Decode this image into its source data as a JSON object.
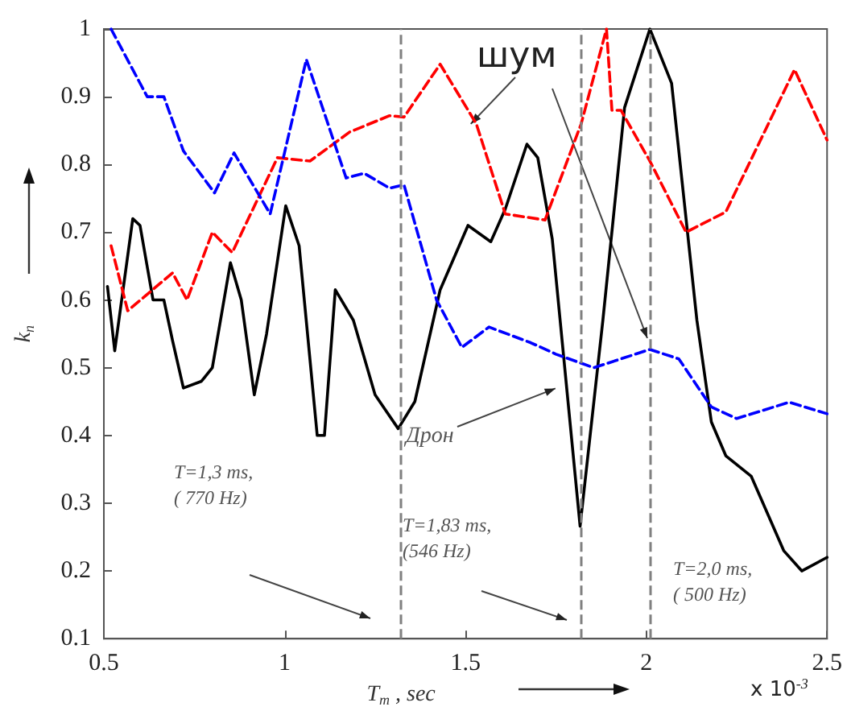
{
  "chart_data": {
    "type": "line",
    "xlabel": "T$_{m}$ , sec",
    "ylabel": "k$_{n}$",
    "xlim": [
      0.5,
      2.5
    ],
    "xticks": [
      0.5,
      1,
      1.5,
      2,
      2.5
    ],
    "ylim": [
      0.1,
      1
    ],
    "yticks": [
      0.1,
      0.2,
      0.3,
      0.4,
      0.5,
      0.6,
      0.7,
      0.8,
      0.9,
      1
    ],
    "grid": false,
    "marker": "none",
    "series": [
      {
        "color": "#000000",
        "line_style": "solid",
        "x": [
          0.51,
          0.53,
          0.58,
          0.6,
          0.636,
          0.666,
          0.69,
          0.72,
          0.77,
          0.8,
          0.85,
          0.88,
          0.916,
          0.95,
          1.003,
          1.04,
          1.09,
          1.11,
          1.14,
          1.19,
          1.25,
          1.314,
          1.36,
          1.43,
          1.507,
          1.57,
          1.61,
          1.67,
          1.7,
          1.74,
          1.817,
          1.88,
          1.94,
          2.01,
          2.07,
          2.14,
          2.18,
          2.22,
          2.29,
          2.38,
          2.43,
          2.5
        ],
        "values": [
          0.62,
          0.525,
          0.72,
          0.71,
          0.6,
          0.6,
          0.54,
          0.47,
          0.48,
          0.5,
          0.655,
          0.6,
          0.46,
          0.55,
          0.739,
          0.68,
          0.4,
          0.4,
          0.615,
          0.57,
          0.46,
          0.41,
          0.45,
          0.615,
          0.71,
          0.686,
          0.734,
          0.83,
          0.81,
          0.69,
          0.266,
          0.57,
          0.884,
          1.0,
          0.92,
          0.57,
          0.42,
          0.37,
          0.34,
          0.23,
          0.2,
          0.22
        ]
      },
      {
        "color": "#ff0000",
        "line_style": "dashed",
        "x": [
          0.52,
          0.566,
          0.69,
          0.73,
          0.8,
          0.855,
          0.98,
          1.07,
          1.18,
          1.29,
          1.33,
          1.43,
          1.53,
          1.61,
          1.72,
          1.82,
          1.89,
          1.905,
          1.93,
          2.01,
          2.11,
          2.22,
          2.41,
          2.5
        ],
        "values": [
          0.68,
          0.584,
          0.64,
          0.6,
          0.7,
          0.67,
          0.81,
          0.805,
          0.848,
          0.872,
          0.87,
          0.948,
          0.86,
          0.727,
          0.718,
          0.86,
          1.0,
          0.88,
          0.88,
          0.805,
          0.7,
          0.73,
          0.94,
          0.836
        ]
      },
      {
        "color": "#0000ff",
        "line_style": "dashed",
        "x": [
          0.52,
          0.62,
          0.666,
          0.72,
          0.806,
          0.86,
          0.96,
          1.06,
          1.17,
          1.22,
          1.29,
          1.33,
          1.42,
          1.49,
          1.565,
          1.68,
          1.75,
          1.855,
          2.01,
          2.09,
          2.18,
          2.25,
          2.395,
          2.5
        ],
        "values": [
          1.0,
          0.9,
          0.9,
          0.82,
          0.758,
          0.817,
          0.727,
          0.955,
          0.78,
          0.787,
          0.765,
          0.77,
          0.6,
          0.53,
          0.56,
          0.537,
          0.52,
          0.5,
          0.527,
          0.513,
          0.442,
          0.425,
          0.449,
          0.432
        ]
      }
    ],
    "ref_lines": [
      {
        "axis": "x",
        "value": 1.32,
        "color": "#808080",
        "line_style": "dashed"
      },
      {
        "axis": "x",
        "value": 1.82,
        "color": "#808080",
        "line_style": "dashed"
      },
      {
        "axis": "x",
        "value": 2.01,
        "color": "#808080",
        "line_style": "dashed"
      }
    ],
    "annotations": [
      {
        "text": "шум",
        "x": 1.53,
        "y": 0.86
      },
      {
        "text": "Дрон",
        "x": 1.76,
        "y": 0.47
      },
      "T=1,3 ms,\n( 770 Hz)",
      "T=1,83 ms,\n(546 Hz)",
      "T=2,0 ms,\n( 500 Hz)",
      "x 10$^{-3}$"
    ]
  }
}
